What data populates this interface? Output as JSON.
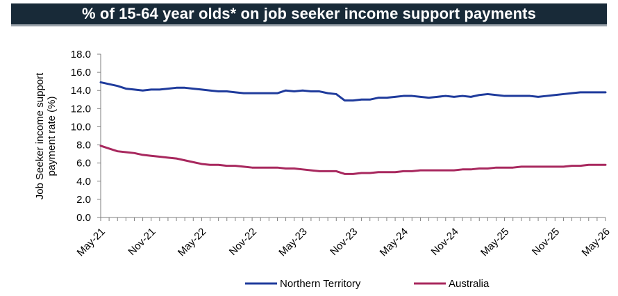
{
  "title": "% of 15-64 year olds* on job seeker income support payments",
  "chart_data": {
    "type": "line",
    "ylabel": [
      "Job Seeker income support",
      "payment rate (%)"
    ],
    "ylim": [
      0,
      18
    ],
    "yticks": [
      "0.0",
      "2.0",
      "4.0",
      "6.0",
      "8.0",
      "10.0",
      "12.0",
      "14.0",
      "16.0",
      "18.0"
    ],
    "x": [
      "May-21",
      "Jun-21",
      "Jul-21",
      "Aug-21",
      "Sep-21",
      "Oct-21",
      "Nov-21",
      "Dec-21",
      "Jan-22",
      "Feb-22",
      "Mar-22",
      "Apr-22",
      "May-22",
      "Jun-22",
      "Jul-22",
      "Aug-22",
      "Sep-22",
      "Oct-22",
      "Nov-22",
      "Dec-22",
      "Jan-23",
      "Feb-23",
      "Mar-23",
      "Apr-23",
      "May-23",
      "Jun-23",
      "Jul-23",
      "Aug-23",
      "Sep-23",
      "Oct-23",
      "Nov-23",
      "Dec-23",
      "Jan-24",
      "Feb-24",
      "Mar-24",
      "Apr-24",
      "May-24",
      "Jun-24",
      "Jul-24",
      "Aug-24",
      "Sep-24",
      "Oct-24",
      "Nov-24",
      "Dec-24",
      "Jan-25",
      "Feb-25",
      "Mar-25",
      "Apr-25",
      "May-25",
      "Jun-25",
      "Jul-25",
      "Aug-25",
      "Sep-25",
      "Oct-25",
      "Nov-25",
      "Dec-25",
      "Jan-26",
      "Feb-26",
      "Mar-26",
      "Apr-26",
      "May-26"
    ],
    "xtick_labels": [
      "May-21",
      "Nov-21",
      "May-22",
      "Nov-22",
      "May-23",
      "Nov-23",
      "May-24",
      "Nov-24",
      "May-25",
      "Nov-25",
      "May-26"
    ],
    "series": [
      {
        "name": "Northern Territory",
        "color": "#1f3b9c",
        "values": [
          14.9,
          14.7,
          14.5,
          14.2,
          14.1,
          14.0,
          14.1,
          14.1,
          14.2,
          14.3,
          14.3,
          14.2,
          14.1,
          14.0,
          13.9,
          13.9,
          13.8,
          13.7,
          13.7,
          13.7,
          13.7,
          13.7,
          14.0,
          13.9,
          14.0,
          13.9,
          13.9,
          13.7,
          13.6,
          12.9,
          12.9,
          13.0,
          13.0,
          13.2,
          13.2,
          13.3,
          13.4,
          13.4,
          13.3,
          13.2,
          13.3,
          13.4,
          13.3,
          13.4,
          13.3,
          13.5,
          13.6,
          13.5,
          13.4,
          13.4,
          13.4,
          13.4,
          13.3,
          13.4,
          13.5,
          13.6,
          13.7,
          13.8,
          13.8,
          13.8,
          13.8
        ]
      },
      {
        "name": "Australia",
        "color": "#a8285e",
        "values": [
          7.9,
          7.6,
          7.3,
          7.2,
          7.1,
          6.9,
          6.8,
          6.7,
          6.6,
          6.5,
          6.3,
          6.1,
          5.9,
          5.8,
          5.8,
          5.7,
          5.7,
          5.6,
          5.5,
          5.5,
          5.5,
          5.5,
          5.4,
          5.4,
          5.3,
          5.2,
          5.1,
          5.1,
          5.1,
          4.8,
          4.8,
          4.9,
          4.9,
          5.0,
          5.0,
          5.0,
          5.1,
          5.1,
          5.2,
          5.2,
          5.2,
          5.2,
          5.2,
          5.3,
          5.3,
          5.4,
          5.4,
          5.5,
          5.5,
          5.5,
          5.6,
          5.6,
          5.6,
          5.6,
          5.6,
          5.6,
          5.7,
          5.7,
          5.8,
          5.8,
          5.8
        ]
      }
    ],
    "legend_position": "bottom",
    "grid": false
  }
}
